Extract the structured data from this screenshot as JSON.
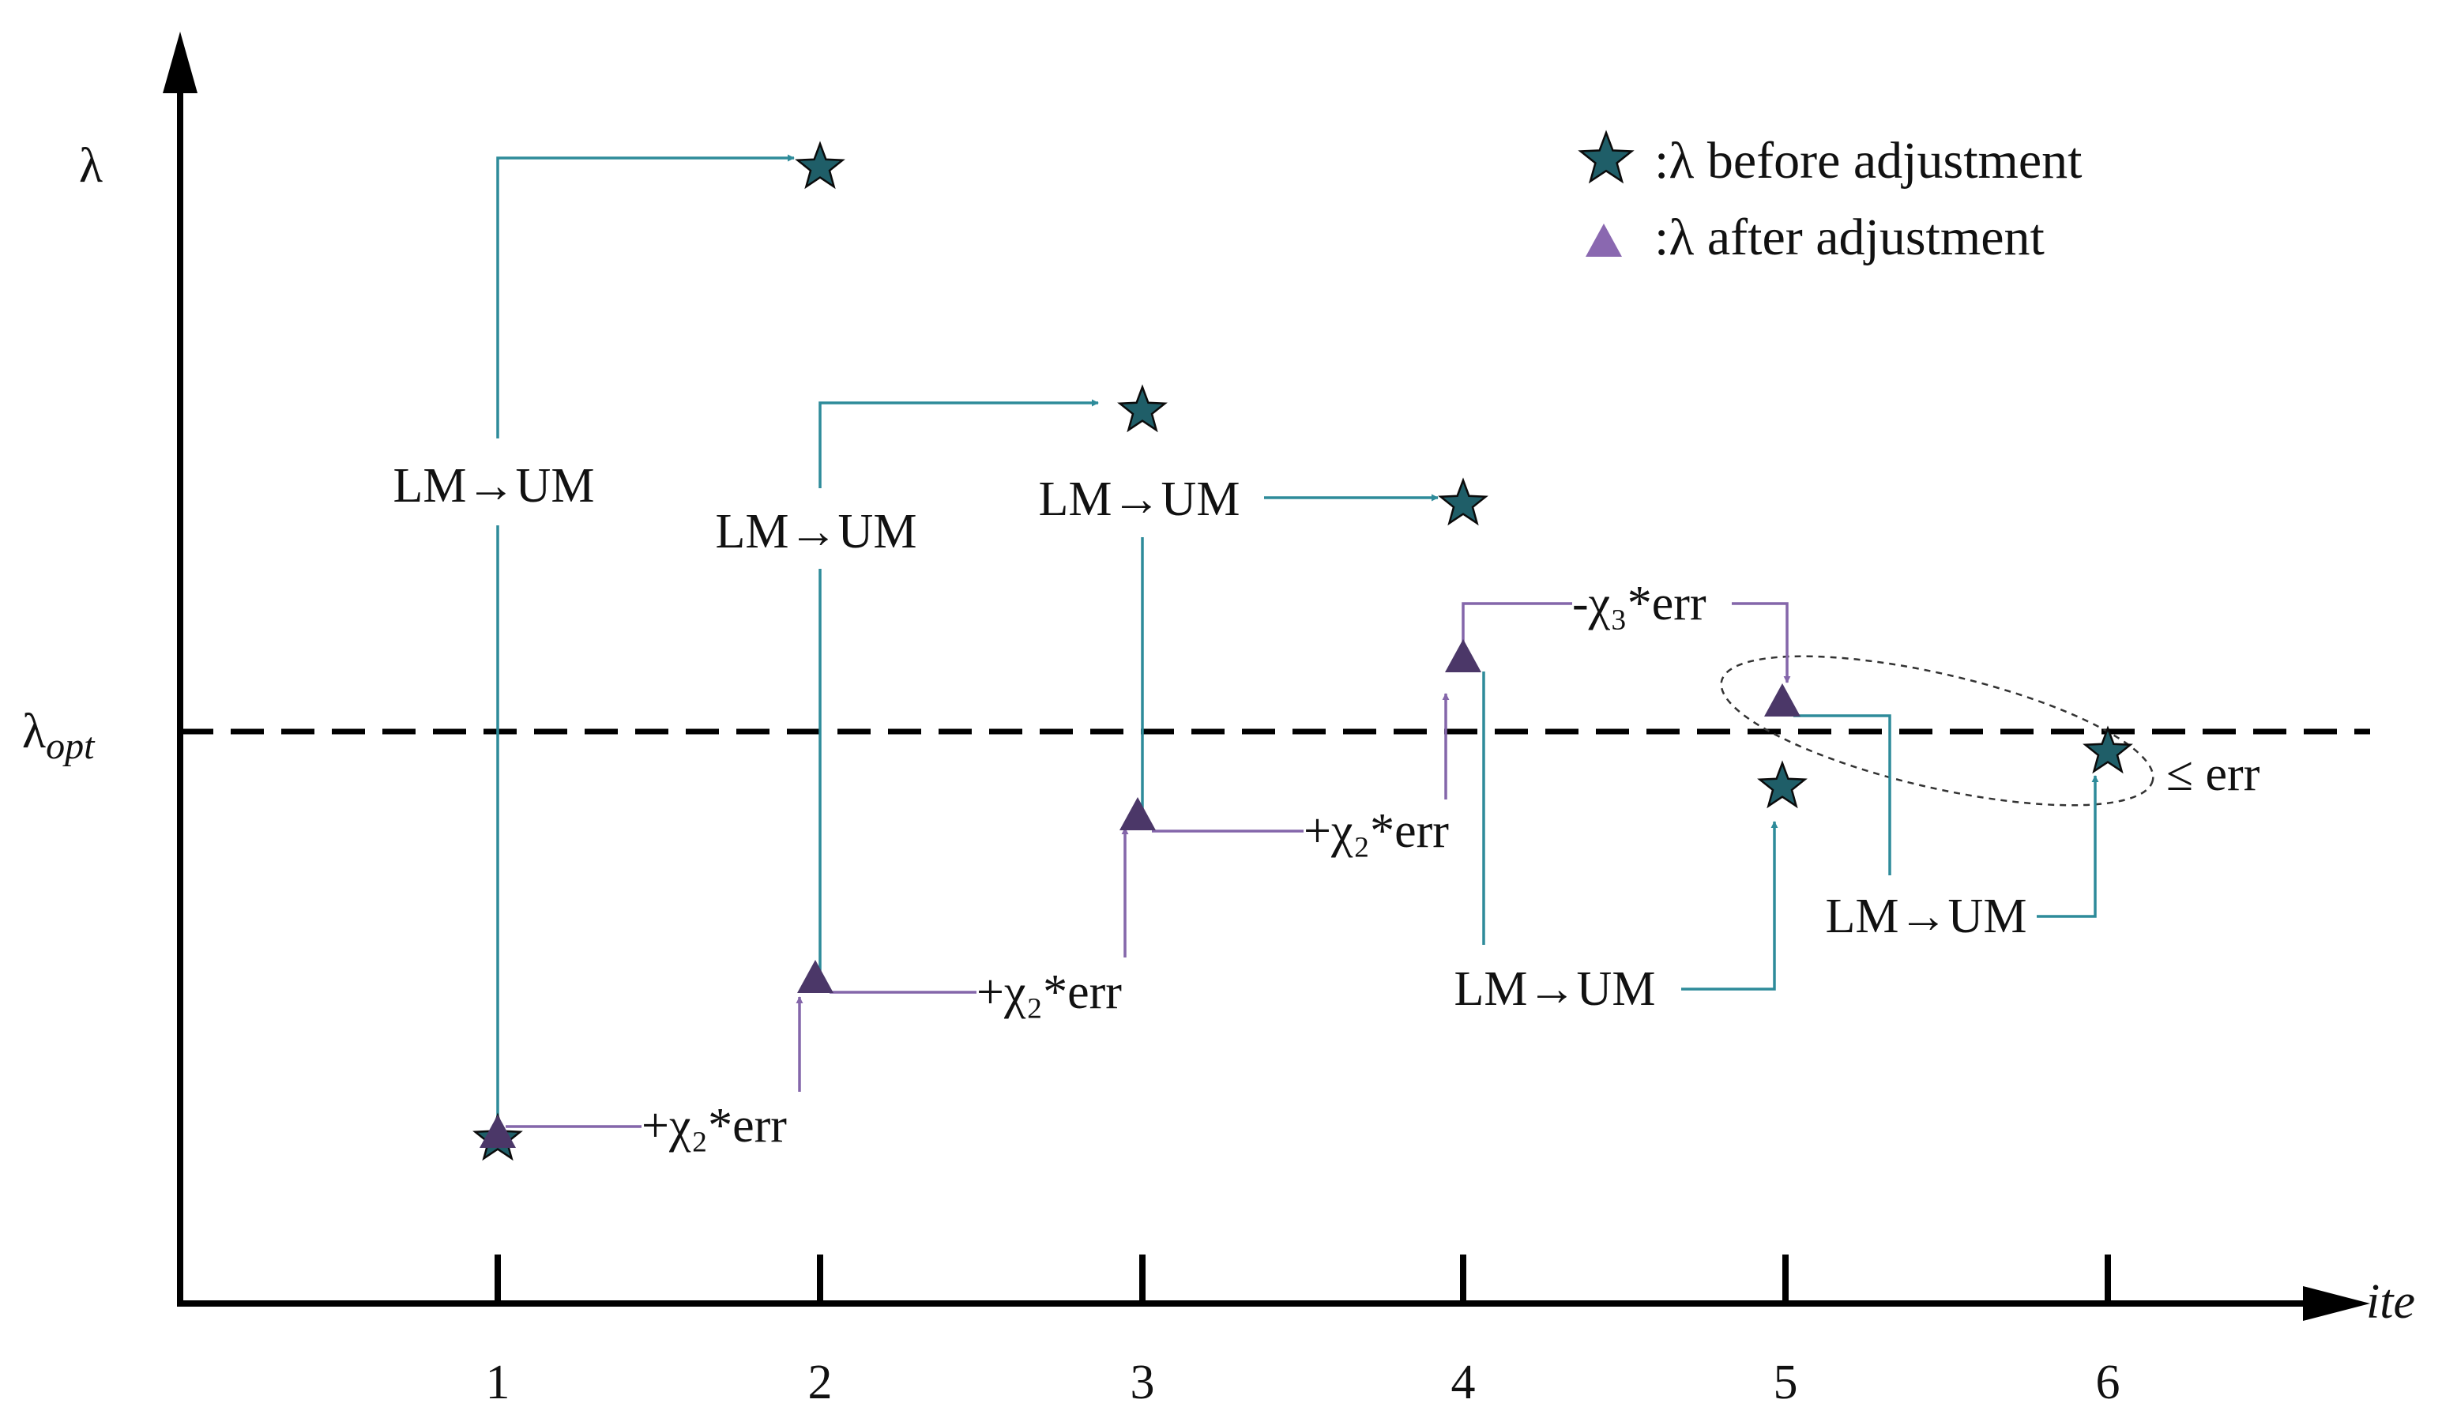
{
  "axes": {
    "y_label": "λ",
    "x_label": "ite",
    "opt_label_main": "λ",
    "opt_label_sub": "opt",
    "x_ticks": [
      "1",
      "2",
      "3",
      "4",
      "5",
      "6"
    ]
  },
  "legend": {
    "before": ":λ before adjustment",
    "after": ":λ after adjustment"
  },
  "annotations": {
    "lm_um_1": "LM→UM",
    "lm_um_2": "LM→UM",
    "lm_um_3": "LM→UM",
    "lm_um_4": "LM→UM",
    "lm_um_5": "LM→UM",
    "plus_1": "+χ₂*err",
    "plus_2": "+χ₂*err",
    "plus_3": "+χ₂*err",
    "minus_4": "-χ₃*err",
    "le_err": "≤ err"
  },
  "colors": {
    "teal": "#2e8b9a",
    "purple": "#8466aa",
    "star_fill": "#1f5e68",
    "triangle_fill": "#4b3768",
    "legend_triangle": "#8a68b0",
    "axis": "#000000"
  }
}
